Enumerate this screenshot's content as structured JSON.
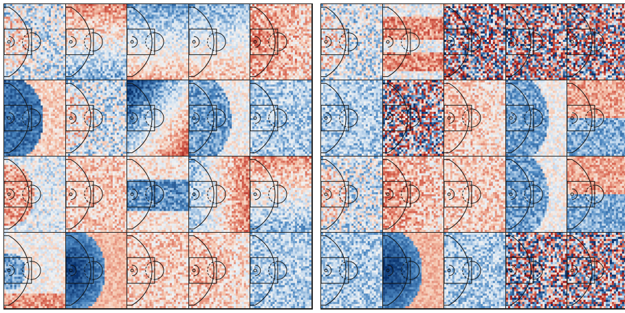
{
  "figure": {
    "panels": [
      {
        "name": "left-panel",
        "rows": 4,
        "cols": 5,
        "cells": [
          {
            "pattern": "mixed-light"
          },
          {
            "pattern": "red-top"
          },
          {
            "pattern": "red-bottom"
          },
          {
            "pattern": "blue-top"
          },
          {
            "pattern": "red-strong"
          },
          {
            "pattern": "blue-strong"
          },
          {
            "pattern": "mixed-light"
          },
          {
            "pattern": "red-corner"
          },
          {
            "pattern": "blue-mid"
          },
          {
            "pattern": "blue-light"
          },
          {
            "pattern": "red-left"
          },
          {
            "pattern": "red-light"
          },
          {
            "pattern": "blue-center"
          },
          {
            "pattern": "red-right"
          },
          {
            "pattern": "red-top"
          },
          {
            "pattern": "blue-spot"
          },
          {
            "pattern": "blue-deep"
          },
          {
            "pattern": "red-light"
          },
          {
            "pattern": "red-mid"
          },
          {
            "pattern": "blue-light"
          }
        ]
      },
      {
        "name": "right-panel",
        "rows": 4,
        "cols": 5,
        "cells": [
          {
            "pattern": "mixed-light"
          },
          {
            "pattern": "red-spot"
          },
          {
            "pattern": "noise"
          },
          {
            "pattern": "noise"
          },
          {
            "pattern": "noise"
          },
          {
            "pattern": "blue-light"
          },
          {
            "pattern": "noise"
          },
          {
            "pattern": "red-mid"
          },
          {
            "pattern": "blue-mid"
          },
          {
            "pattern": "red-blue-split"
          },
          {
            "pattern": "mixed-light"
          },
          {
            "pattern": "red-strong"
          },
          {
            "pattern": "red-light"
          },
          {
            "pattern": "blue-mid"
          },
          {
            "pattern": "red-blue-split"
          },
          {
            "pattern": "blue-light"
          },
          {
            "pattern": "blue-deep"
          },
          {
            "pattern": "blue-light"
          },
          {
            "pattern": "noise"
          },
          {
            "pattern": "noise"
          }
        ]
      }
    ],
    "colors": {
      "court_line": "#111111",
      "deep_blue": "#08306b",
      "mid_blue": "#4a86c0",
      "light_blue": "#c6dbef",
      "neutral": "#f2f2f2",
      "light_red": "#f6c7b0",
      "mid_red": "#d6604d",
      "deep_red": "#9e1b1b"
    }
  }
}
